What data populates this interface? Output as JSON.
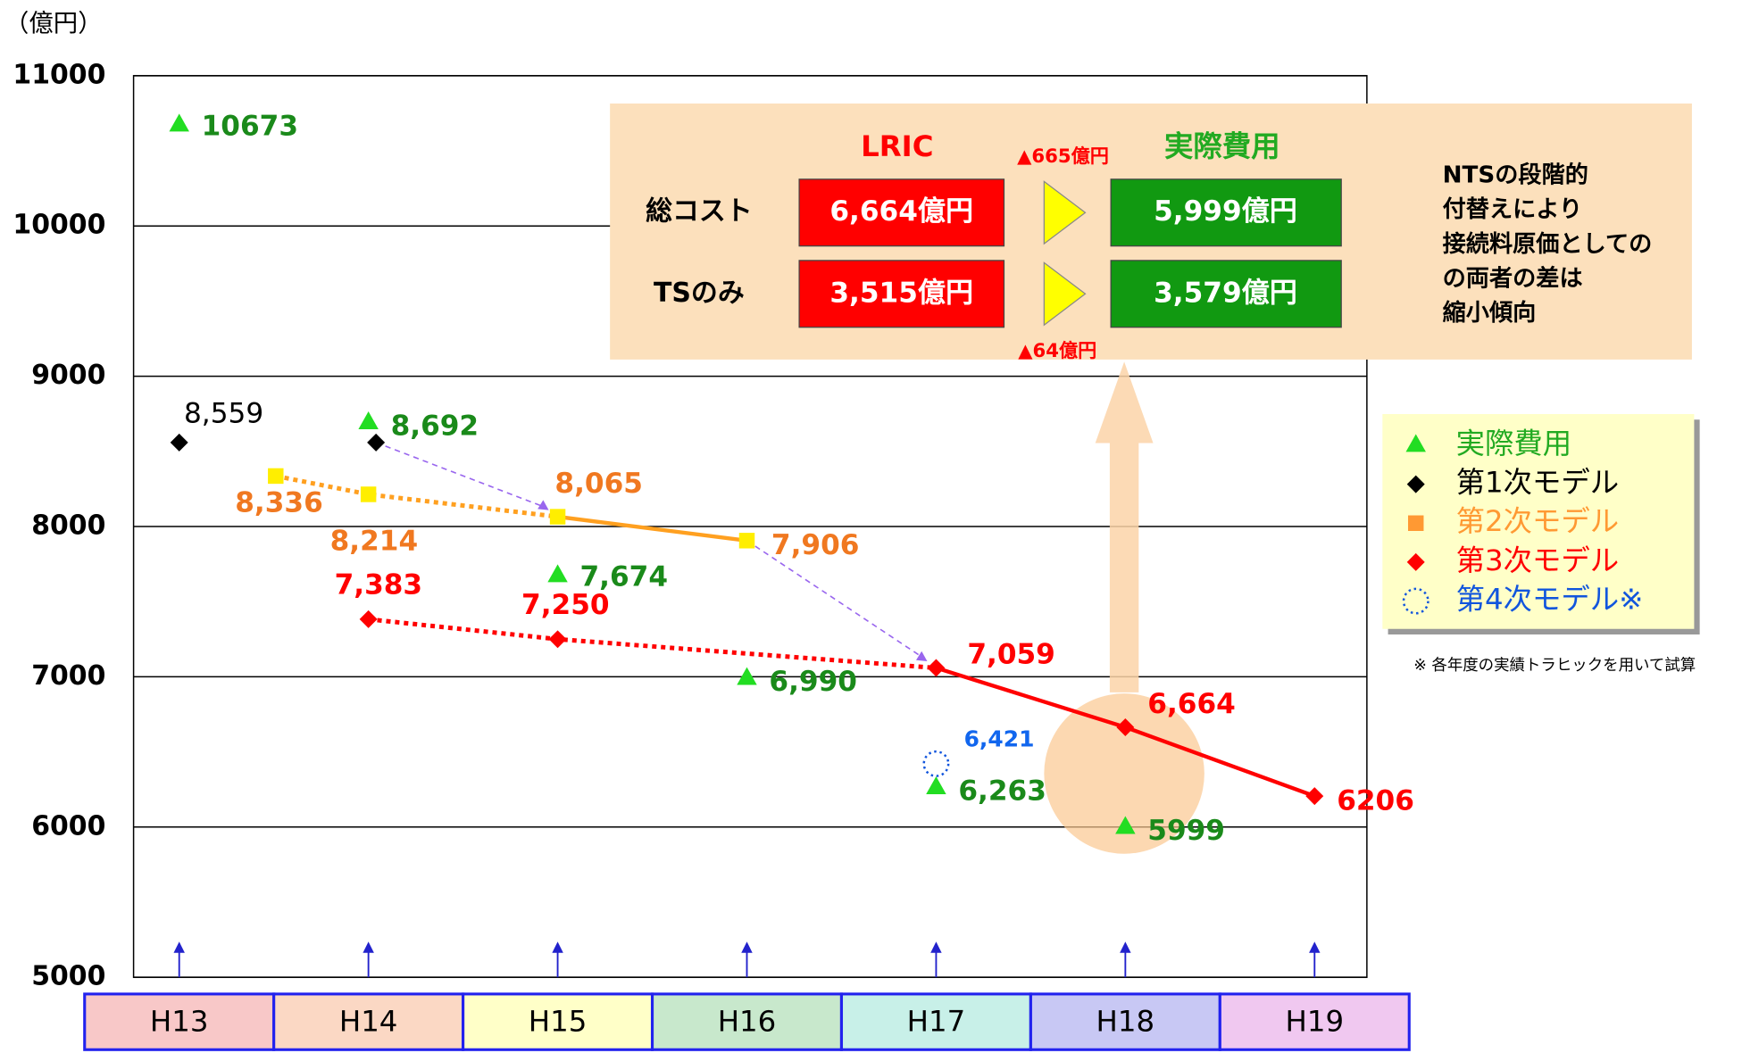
{
  "chart_data": {
    "type": "line",
    "y_unit": "（億円）",
    "categories": [
      "H13",
      "H14",
      "H15",
      "H16",
      "H17",
      "H18",
      "H19"
    ],
    "category_colors": [
      "#f8c8c8",
      "#fbd8c4",
      "#ffffc8",
      "#c8e8cc",
      "#c8f0e8",
      "#c8c8f4",
      "#f0c8f0"
    ],
    "ylim": [
      5000,
      11000
    ],
    "yticks": [
      5000,
      6000,
      7000,
      8000,
      9000,
      10000,
      11000
    ],
    "grid": true,
    "series": [
      {
        "name": "実際費用",
        "color": "#44cc44",
        "marker": "triangle",
        "marker_color": "#22dd22",
        "label_color": "#1a8a1a",
        "legend_color": "#22aa22",
        "dotted_segments": 0,
        "x": [
          0,
          1,
          2,
          3,
          4,
          5
        ],
        "values": [
          10673,
          8692,
          7674,
          6990,
          6263,
          5999
        ],
        "value_labels": [
          "10673",
          "8,692",
          "7,674",
          "6,990",
          "6,263",
          "5999"
        ]
      },
      {
        "name": "第1次モデル",
        "color": "#000000",
        "marker": "diamond",
        "marker_color": "#000000",
        "label_color": "#000000",
        "legend_color": "#000000",
        "dotted_segments": 0,
        "x": [
          0,
          1.04
        ],
        "values": [
          8559,
          8559
        ],
        "value_labels": [
          "8,559",
          null
        ]
      },
      {
        "name": "第2次モデル",
        "color": "#ffa020",
        "marker": "square",
        "marker_color": "#ffee00",
        "label_color": "#f07820",
        "legend_color": "#ff9933",
        "legend_marker_color": "#ff9933",
        "dotted_segments": 2,
        "x": [
          0.51,
          1,
          2,
          3
        ],
        "values": [
          8336,
          8214,
          8065,
          7906
        ],
        "value_labels": [
          "8,336",
          "8,214",
          "8,065",
          "7,906"
        ]
      },
      {
        "name": "第3次モデル",
        "color": "#ff0000",
        "marker": "diamond",
        "marker_color": "#ff0000",
        "label_color": "#ff0000",
        "legend_color": "#ff0000",
        "dotted_segments": 2,
        "x": [
          1,
          2,
          4,
          5,
          6
        ],
        "values": [
          7383,
          7250,
          7059,
          6664,
          6206
        ],
        "value_labels": [
          "7,383",
          "7,250",
          "7,059",
          "6,664",
          "6206"
        ]
      },
      {
        "name": "第4次モデル※",
        "color": "#1155dd",
        "marker": "circle",
        "marker_color": "#1155dd",
        "label_color": "#1166ee",
        "legend_color": "#1155dd",
        "dotted_segments": 0,
        "x": [
          4
        ],
        "values": [
          6421
        ],
        "value_labels": [
          "6,421"
        ]
      }
    ],
    "panel": {
      "headers": [
        "LRIC",
        "実際費用"
      ],
      "rows": [
        {
          "label": "総コスト",
          "lric": "6,664億円",
          "actual": "5,999億円"
        },
        {
          "label": "TSのみ",
          "lric": "3,515億円",
          "actual": "3,579億円"
        }
      ],
      "diffs": [
        "▲665億円",
        "▲64億円"
      ]
    },
    "note_lines": [
      "NTSの段階的",
      "付替えにより",
      "接続料原価としての",
      "の両者の差は",
      "縮小傾向"
    ],
    "footnote": "※ 各年度の実績トラヒックを用いて試算"
  }
}
